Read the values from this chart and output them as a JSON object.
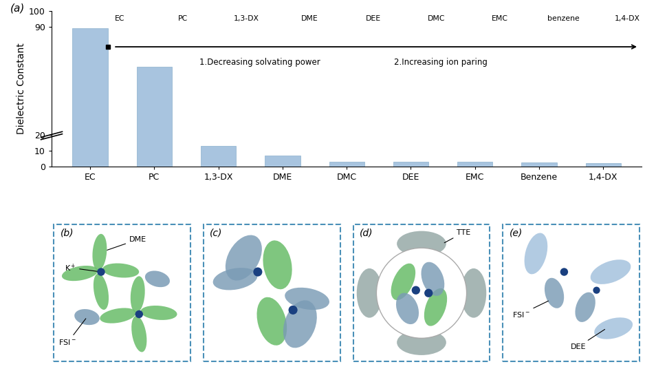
{
  "bar_categories": [
    "EC",
    "PC",
    "1,3-DX",
    "DME",
    "DMC",
    "DEE",
    "EMC",
    "Benzene",
    "1,4-DX"
  ],
  "bar_values": [
    89,
    64,
    13,
    7,
    3.1,
    2.8,
    2.8,
    2.3,
    2.2
  ],
  "bar_color": "#a8c4df",
  "bar_edge_color": "#8ab0cc",
  "bg_color": "#ffffff",
  "ylabel": "Dielectric Constant",
  "arrow_text1": "1.Decreasing solvating power",
  "arrow_text2": "2.Increasing ion paring",
  "mol_labels_top": [
    "EC",
    "PC",
    "1,3-DX",
    "DME",
    "DEE",
    "DMC",
    "EMC",
    "benzene",
    "1,4-DX"
  ],
  "color_green": "#6dbf6d",
  "color_dark_blue": "#1a4080",
  "color_blue_gray": "#7a9bb5",
  "color_lt_blue": "#a8c4df",
  "color_gray": "#9aacaa",
  "dashed_border_color": "#4a90b8",
  "panel_labels": [
    "(b)",
    "(c)",
    "(d)",
    "(e)"
  ]
}
